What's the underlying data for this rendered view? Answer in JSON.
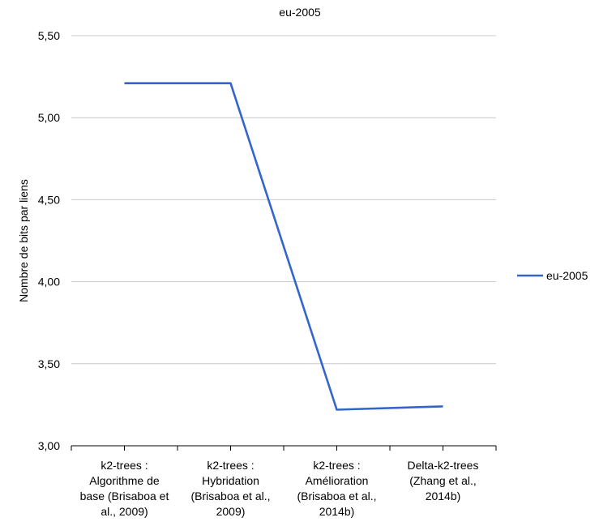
{
  "chart_data": {
    "type": "line",
    "title": "eu-2005",
    "xlabel": "",
    "ylabel": "Nombre de bits par liens",
    "ylim": [
      3.0,
      5.5
    ],
    "yticks": [
      "3,00",
      "3,50",
      "4,00",
      "4,50",
      "5,00",
      "5,50"
    ],
    "categories": [
      [
        "k2-trees :",
        "Algorithme de",
        "base (Brisaboa et",
        "al., 2009)"
      ],
      [
        "k2-trees :",
        "Hybridation",
        "(Brisaboa et al.,",
        "2009)"
      ],
      [
        "k2-trees :",
        "Amélioration",
        "(Brisaboa et al.,",
        "2014b)"
      ],
      [
        "Delta-k2-trees",
        "(Zhang et al.,",
        "2014b)"
      ]
    ],
    "series": [
      {
        "name": "eu-2005",
        "color": "#3366CC",
        "values": [
          5.21,
          5.21,
          3.22,
          3.24
        ]
      }
    ],
    "grid": true,
    "legend_position": "right"
  }
}
